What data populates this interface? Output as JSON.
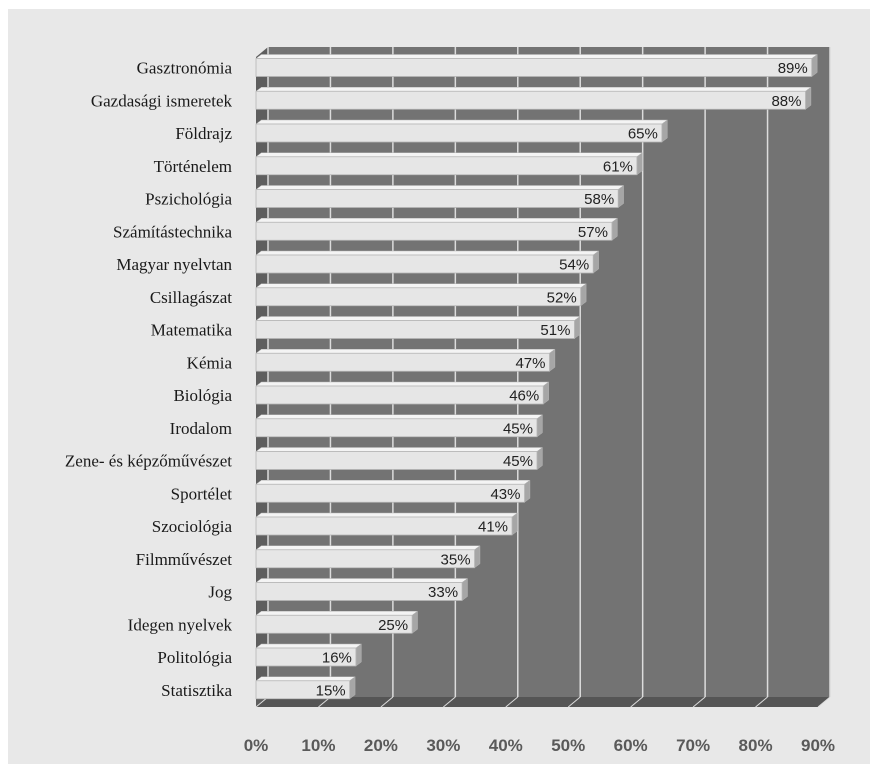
{
  "chart_data": {
    "type": "bar",
    "orientation": "horizontal",
    "title": "",
    "xlabel": "",
    "ylabel": "",
    "categories": [
      "Gasztronómia",
      "Gazdasági ismeretek",
      "Földrajz",
      "Történelem",
      "Pszichológia",
      "Számítástechnika",
      "Magyar nyelvtan",
      "Csillagászat",
      "Matematika",
      "Kémia",
      "Biológia",
      "Irodalom",
      "Zene- és képzőművészet",
      "Sportélet",
      "Szociológia",
      "Filmművészet",
      "Jog",
      "Idegen nyelvek",
      "Politológia",
      "Statisztika"
    ],
    "values": [
      89,
      88,
      65,
      61,
      58,
      57,
      54,
      52,
      51,
      47,
      46,
      45,
      45,
      43,
      41,
      35,
      33,
      25,
      16,
      15
    ],
    "value_labels": [
      "89%",
      "88%",
      "65%",
      "61%",
      "58%",
      "57%",
      "54%",
      "52%",
      "51%",
      "47%",
      "46%",
      "45%",
      "45%",
      "43%",
      "41%",
      "35%",
      "33%",
      "25%",
      "16%",
      "15%"
    ],
    "x_ticks": [
      0,
      10,
      20,
      30,
      40,
      50,
      60,
      70,
      80,
      90
    ],
    "x_tick_labels": [
      "0%",
      "10%",
      "20%",
      "30%",
      "40%",
      "50%",
      "60%",
      "70%",
      "80%",
      "90%"
    ],
    "xlim": [
      0,
      90
    ],
    "grid": true,
    "legend": "none",
    "colors": {
      "page_background": "#e8e8e8",
      "plot_background": "#737373",
      "wall_side": "#5e5e5e",
      "floor": "#555555",
      "gridline": "#dcdcdc",
      "bar_front": "#e6e6e6",
      "bar_top": "#f4f4f4",
      "bar_side": "#a6a6a6",
      "bar_outline": "#b5b5b5"
    }
  }
}
